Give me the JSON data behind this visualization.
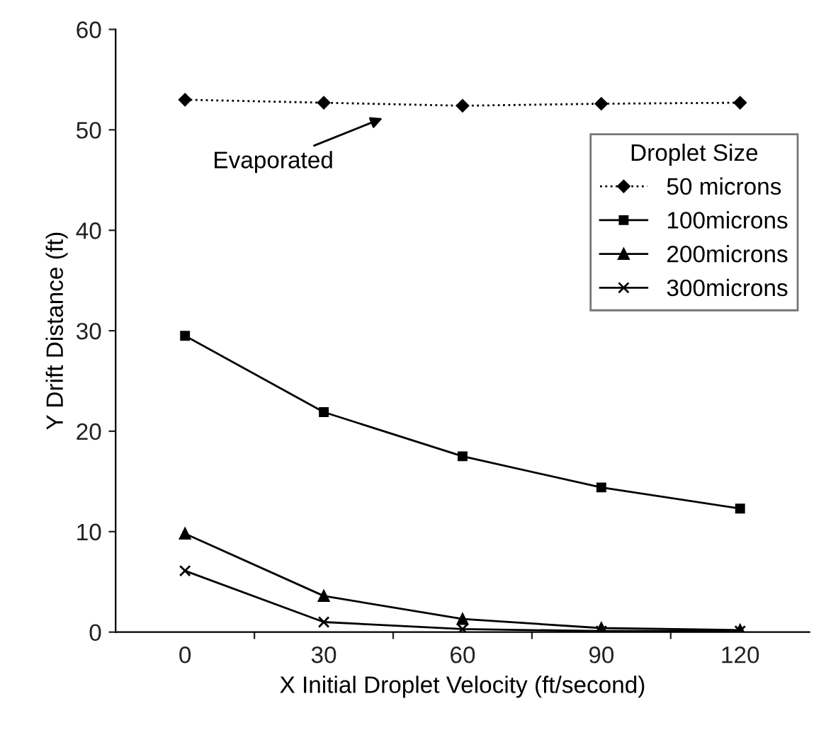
{
  "chart_data": {
    "type": "line",
    "xlabel": "X Initial Droplet Velocity (ft/second)",
    "ylabel": "Y Drift Distance (ft)",
    "legend_title": "Droplet Size",
    "legend": "right",
    "x": [
      0,
      30,
      60,
      90,
      120
    ],
    "xlim": [
      -15,
      135
    ],
    "xticks": [
      0,
      {
        "value": 15,
        "label": null
      },
      30,
      {
        "value": 45,
        "label": null
      },
      60,
      {
        "value": 75,
        "label": null
      },
      90,
      {
        "value": 105,
        "label": null
      },
      120
    ],
    "ylim": [
      0,
      60
    ],
    "yticks": [
      0,
      10,
      20,
      30,
      40,
      50,
      60
    ],
    "grid": false,
    "series": [
      {
        "name": "50 microns",
        "color": "#000000",
        "marker": "diamond",
        "line_style": "dotted",
        "values": [
          53.0,
          52.7,
          52.4,
          52.6,
          52.7
        ]
      },
      {
        "name": "100microns",
        "color": "#000000",
        "marker": "square",
        "line_style": "solid",
        "values": [
          29.5,
          21.9,
          17.5,
          14.4,
          12.3
        ]
      },
      {
        "name": "200microns",
        "color": "#000000",
        "marker": "triangle",
        "line_style": "solid",
        "values": [
          9.8,
          3.6,
          1.3,
          0.4,
          0.2
        ]
      },
      {
        "name": "300microns",
        "color": "#000000",
        "marker": "cross",
        "line_style": "solid",
        "values": [
          6.1,
          1.0,
          0.3,
          0.1,
          0.1
        ]
      }
    ],
    "annotations": [
      "Evaporated"
    ]
  }
}
